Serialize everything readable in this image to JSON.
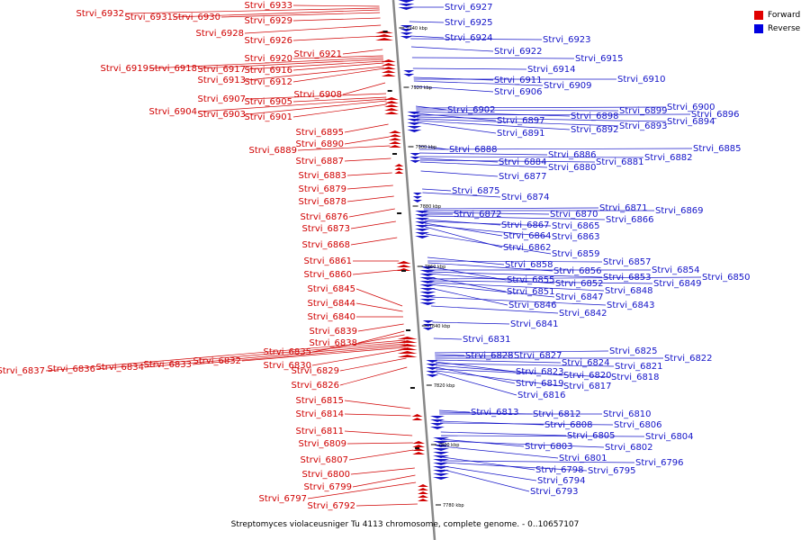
{
  "caption": "Streptomyces violaceusniger Tu 4113 chromosome, complete genome. - 0..10657107",
  "legend": [
    {
      "label": "Forward",
      "color": "#e00000"
    },
    {
      "label": "Reverse",
      "color": "#0000e0"
    }
  ],
  "colors": {
    "forward": "#d00000",
    "reverse": "#1414c8",
    "axis": "#888888"
  },
  "ticks": [
    "7940 kbp",
    "7920 kbp",
    "7900 kbp",
    "7880 kbp",
    "7860 kbp",
    "7840 kbp",
    "7820 kbp",
    "7800 kbp",
    "7780 kbp"
  ],
  "forward_genes": [
    "Strvi_6933",
    "Strvi_6932",
    "Strvi_6931",
    "Strvi_6930",
    "Strvi_6929",
    "Strvi_6928",
    "Strvi_6926",
    "Strvi_6921",
    "Strvi_6920",
    "Strvi_6919",
    "Strvi_6918",
    "Strvi_6917",
    "Strvi_6916",
    "Strvi_6913",
    "Strvi_6912",
    "Strvi_6908",
    "Strvi_6907",
    "Strvi_6905",
    "Strvi_6904",
    "Strvi_6903",
    "Strvi_6901",
    "Strvi_6895",
    "Strvi_6890",
    "Strvi_6889",
    "Strvi_6887",
    "Strvi_6883",
    "Strvi_6879",
    "Strvi_6878",
    "Strvi_6876",
    "Strvi_6873",
    "Strvi_6868",
    "Strvi_6861",
    "Strvi_6860",
    "Strvi_6845",
    "Strvi_6844",
    "Strvi_6840",
    "Strvi_6839",
    "Strvi_6838",
    "Strvi_6835",
    "Strvi_6837",
    "Strvi_6836",
    "Strvi_6834",
    "Strvi_6833",
    "Strvi_6832",
    "Strvi_6830",
    "Strvi_6829",
    "Strvi_6826",
    "Strvi_6815",
    "Strvi_6814",
    "Strvi_6811",
    "Strvi_6809",
    "Strvi_6807",
    "Strvi_6800",
    "Strvi_6799",
    "Strvi_6797",
    "Strvi_6792"
  ],
  "reverse_genes": [
    "Strvi_6927",
    "Strvi_6925",
    "Strvi_6924",
    "Strvi_6923",
    "Strvi_6922",
    "Strvi_6915",
    "Strvi_6914",
    "Strvi_6911",
    "Strvi_6910",
    "Strvi_6909",
    "Strvi_6906",
    "Strvi_6902",
    "Strvi_6900",
    "Strvi_6899",
    "Strvi_6898",
    "Strvi_6897",
    "Strvi_6896",
    "Strvi_6894",
    "Strvi_6893",
    "Strvi_6892",
    "Strvi_6891",
    "Strvi_6888",
    "Strvi_6886",
    "Strvi_6885",
    "Strvi_6884",
    "Strvi_6882",
    "Strvi_6881",
    "Strvi_6880",
    "Strvi_6877",
    "Strvi_6875",
    "Strvi_6874",
    "Strvi_6872",
    "Strvi_6871",
    "Strvi_6870",
    "Strvi_6869",
    "Strvi_6867",
    "Strvi_6866",
    "Strvi_6865",
    "Strvi_6864",
    "Strvi_6863",
    "Strvi_6862",
    "Strvi_6859",
    "Strvi_6858",
    "Strvi_6857",
    "Strvi_6856",
    "Strvi_6855",
    "Strvi_6854",
    "Strvi_6853",
    "Strvi_6852",
    "Strvi_6851",
    "Strvi_6850",
    "Strvi_6849",
    "Strvi_6848",
    "Strvi_6847",
    "Strvi_6846",
    "Strvi_6843",
    "Strvi_6842",
    "Strvi_6841",
    "Strvi_6831",
    "Strvi_6828",
    "Strvi_6827",
    "Strvi_6825",
    "Strvi_6824",
    "Strvi_6823",
    "Strvi_6822",
    "Strvi_6821",
    "Strvi_6820",
    "Strvi_6819",
    "Strvi_6818",
    "Strvi_6817",
    "Strvi_6816",
    "Strvi_6813",
    "Strvi_6812",
    "Strvi_6810",
    "Strvi_6808",
    "Strvi_6806",
    "Strvi_6805",
    "Strvi_6804",
    "Strvi_6803",
    "Strvi_6802",
    "Strvi_6801",
    "Strvi_6798",
    "Strvi_6796",
    "Strvi_6795",
    "Strvi_6794",
    "Strvi_6793"
  ]
}
